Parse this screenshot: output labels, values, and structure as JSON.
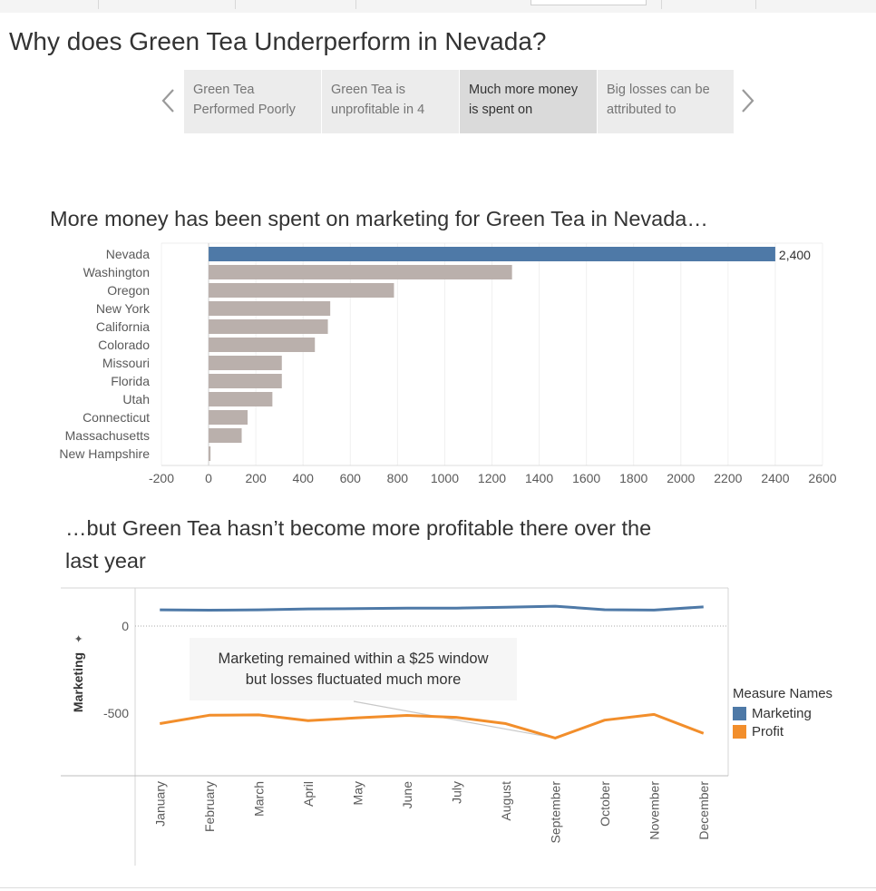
{
  "title": "Why does Green Tea Underperform in Nevada?",
  "story_nav": {
    "prev_icon": "chevron-left-icon",
    "next_icon": "chevron-right-icon",
    "cards": [
      {
        "line1": "Green Tea",
        "line2": "Performed Poorly",
        "active": false
      },
      {
        "line1": "Green Tea is",
        "line2": "unprofitable in 4",
        "active": false
      },
      {
        "line1": "Much more money",
        "line2": "is spent on",
        "active": true
      },
      {
        "line1": "Big losses can be",
        "line2": "attributed to",
        "active": false
      }
    ]
  },
  "section1_title": "More money has been spent on marketing for Green Tea in Nevada…",
  "section2_title_line1": "…but Green Tea hasn’t become more profitable there over the",
  "section2_title_line2": "last year",
  "callout": {
    "line1": "Marketing remained within a $25 window",
    "line2": "but losses fluctuated much more"
  },
  "legend": {
    "title": "Measure Names",
    "items": [
      {
        "label": "Marketing",
        "color": "#4e79a7"
      },
      {
        "label": "Profit",
        "color": "#f28e2b"
      }
    ]
  },
  "colors": {
    "highlight_bar": "#4e79a7",
    "other_bar": "#bab0ac",
    "marketing": "#4e79a7",
    "profit": "#f28e2b"
  },
  "chart_data": [
    {
      "type": "bar",
      "orientation": "horizontal",
      "categories": [
        "Nevada",
        "Washington",
        "Oregon",
        "New York",
        "California",
        "Colorado",
        "Missouri",
        "Florida",
        "Utah",
        "Connecticut",
        "Massachusetts",
        "New Hampshire"
      ],
      "values": [
        2400,
        1285,
        785,
        515,
        505,
        450,
        310,
        310,
        270,
        165,
        140,
        8
      ],
      "highlight": "Nevada",
      "data_labels": [
        {
          "category": "Nevada",
          "text": "2,400"
        }
      ],
      "xlim": [
        -200,
        2600
      ],
      "xticks": [
        "-200",
        "0",
        "200",
        "400",
        "600",
        "800",
        "1000",
        "1200",
        "1400",
        "1600",
        "1800",
        "2000",
        "2200",
        "2400",
        "2600"
      ],
      "grid": true
    },
    {
      "type": "line",
      "x": [
        "January",
        "February",
        "March",
        "April",
        "May",
        "June",
        "July",
        "August",
        "September",
        "October",
        "November",
        "December"
      ],
      "ylabel": "Marketing",
      "yticks": [
        "0",
        "-500"
      ],
      "ylim": [
        -700,
        100
      ],
      "series": [
        {
          "name": "Marketing",
          "values": [
            93,
            91,
            93,
            98,
            100,
            103,
            103,
            108,
            114,
            94,
            92,
            110
          ]
        },
        {
          "name": "Profit",
          "values": [
            -560,
            -512,
            -510,
            -543,
            -527,
            -513,
            -524,
            -560,
            -643,
            -540,
            -507,
            -616
          ]
        }
      ],
      "legend": "right"
    }
  ]
}
